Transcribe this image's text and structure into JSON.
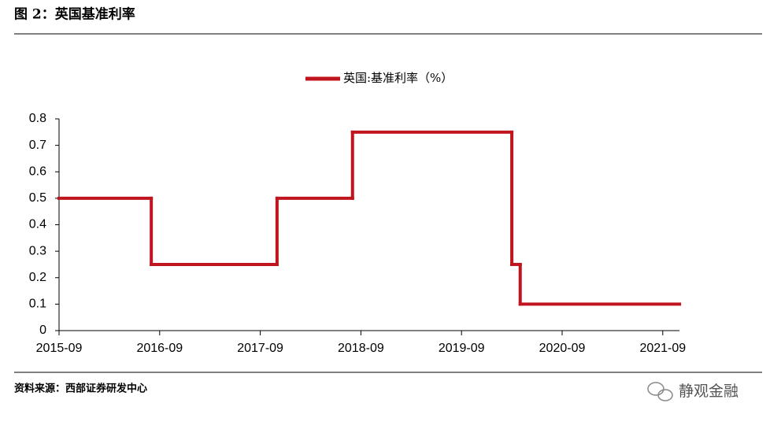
{
  "header": {
    "title": "图 2：英国基准利率"
  },
  "chart_data": {
    "type": "step",
    "x": [
      "2015-09",
      "2016-08",
      "2017-11",
      "2018-08",
      "2020-03",
      "2020-04"
    ],
    "series": [
      {
        "name": "英国:基准利率（%）",
        "color": "#c0141e",
        "values": [
          0.5,
          0.25,
          0.5,
          0.75,
          0.25,
          0.1
        ]
      }
    ],
    "xlim": [
      "2015-09",
      "2021-11"
    ],
    "xticks": [
      "2015-09",
      "2016-09",
      "2017-09",
      "2018-09",
      "2019-09",
      "2020-09",
      "2021-09"
    ],
    "ylim": [
      0,
      0.8
    ],
    "yticks": [
      0,
      0.1,
      0.2,
      0.3,
      0.4,
      0.5,
      0.6,
      0.7,
      0.8
    ],
    "legend": "top"
  },
  "footer": {
    "source": "资料来源：西部证券研发中心",
    "watermark": "静观金融"
  }
}
